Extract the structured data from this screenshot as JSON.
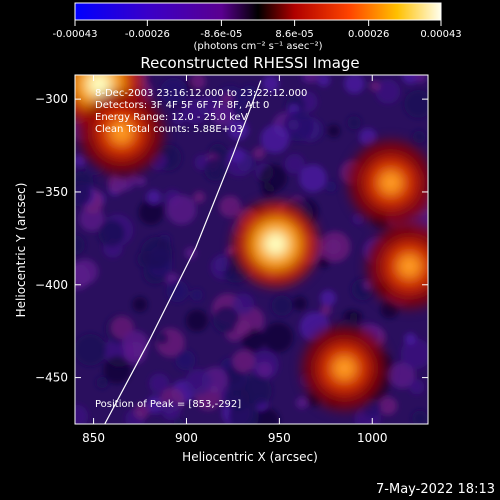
{
  "colorbar": {
    "tick_labels": [
      "-0.00043",
      "-0.00026",
      "-8.6e-05",
      "8.6e-05",
      "0.00026",
      "0.00043"
    ],
    "tick_values": [
      -0.00043,
      -0.00026,
      -8.6e-05,
      8.6e-05,
      0.00026,
      0.00043
    ],
    "range": [
      -0.00043,
      0.00043
    ],
    "units_label": "(photons cm⁻² s⁻¹ asec⁻²)"
  },
  "chart_data": {
    "type": "heatmap",
    "title": "Reconstructed RHESSI Image",
    "xlabel": "Heliocentric X (arcsec)",
    "ylabel": "Heliocentric Y (arcsec)",
    "xlim": [
      840,
      1030
    ],
    "ylim": [
      -475,
      -287
    ],
    "x_ticks": [
      850,
      900,
      950,
      1000
    ],
    "y_ticks": [
      -450,
      -400,
      -350,
      -300
    ],
    "x_tick_labels": [
      "850",
      "900",
      "950",
      "1000"
    ],
    "y_tick_labels": [
      "−450",
      "−400",
      "−350",
      "−300"
    ],
    "sources": [
      {
        "x": 948,
        "y": -378,
        "intensity": 0.00043
      },
      {
        "x": 853,
        "y": -292,
        "intensity": 0.00043
      },
      {
        "x": 1010,
        "y": -345,
        "intensity": 0.00026
      },
      {
        "x": 865,
        "y": -318,
        "intensity": 0.00026
      },
      {
        "x": 985,
        "y": -445,
        "intensity": 0.00026
      },
      {
        "x": 1020,
        "y": -390,
        "intensity": 0.00026
      }
    ],
    "limb_curve": [
      [
        856,
        -475
      ],
      [
        880,
        -430
      ],
      [
        905,
        -380
      ],
      [
        925,
        -330
      ],
      [
        940,
        -290
      ]
    ],
    "annotations": [
      "8-Dec-2003 23:16:12.000 to 23:22:12.000",
      "Detectors: 3F 4F 5F 6F 7F 8F, Att 0",
      "Energy Range: 12.0 - 25.0 keV",
      "Clean      Total counts: 5.88E+03",
      "Position of Peak = [853,-292]"
    ]
  },
  "timestamp": "7-May-2022 18:13"
}
